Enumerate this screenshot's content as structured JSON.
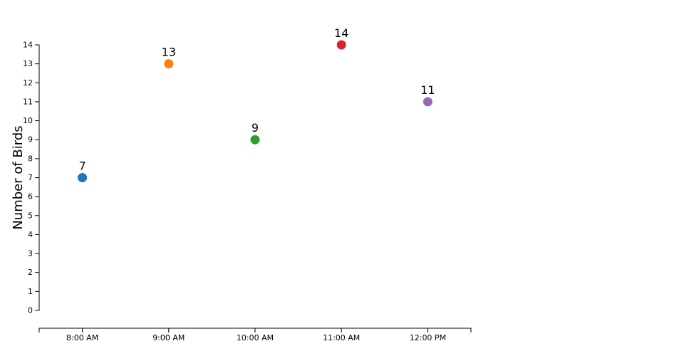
{
  "chart_data": {
    "type": "scatter",
    "title": "",
    "xlabel": "",
    "ylabel": "Number of Birds",
    "categories": [
      "8:00 AM",
      "9:00 AM",
      "10:00 AM",
      "11:00 AM",
      "12:00 PM"
    ],
    "values": [
      7,
      13,
      9,
      14,
      11
    ],
    "colors": [
      "#1f77b4",
      "#ff7f0e",
      "#2ca02c",
      "#d62728",
      "#9467bd"
    ],
    "data_labels": [
      "7",
      "13",
      "9",
      "14",
      "11"
    ],
    "y_ticks": [
      "0",
      "1",
      "2",
      "3",
      "4",
      "5",
      "6",
      "7",
      "8",
      "9",
      "10",
      "11",
      "12",
      "13",
      "14"
    ],
    "ylim": [
      0,
      14
    ],
    "grid": false,
    "legend": "none"
  }
}
